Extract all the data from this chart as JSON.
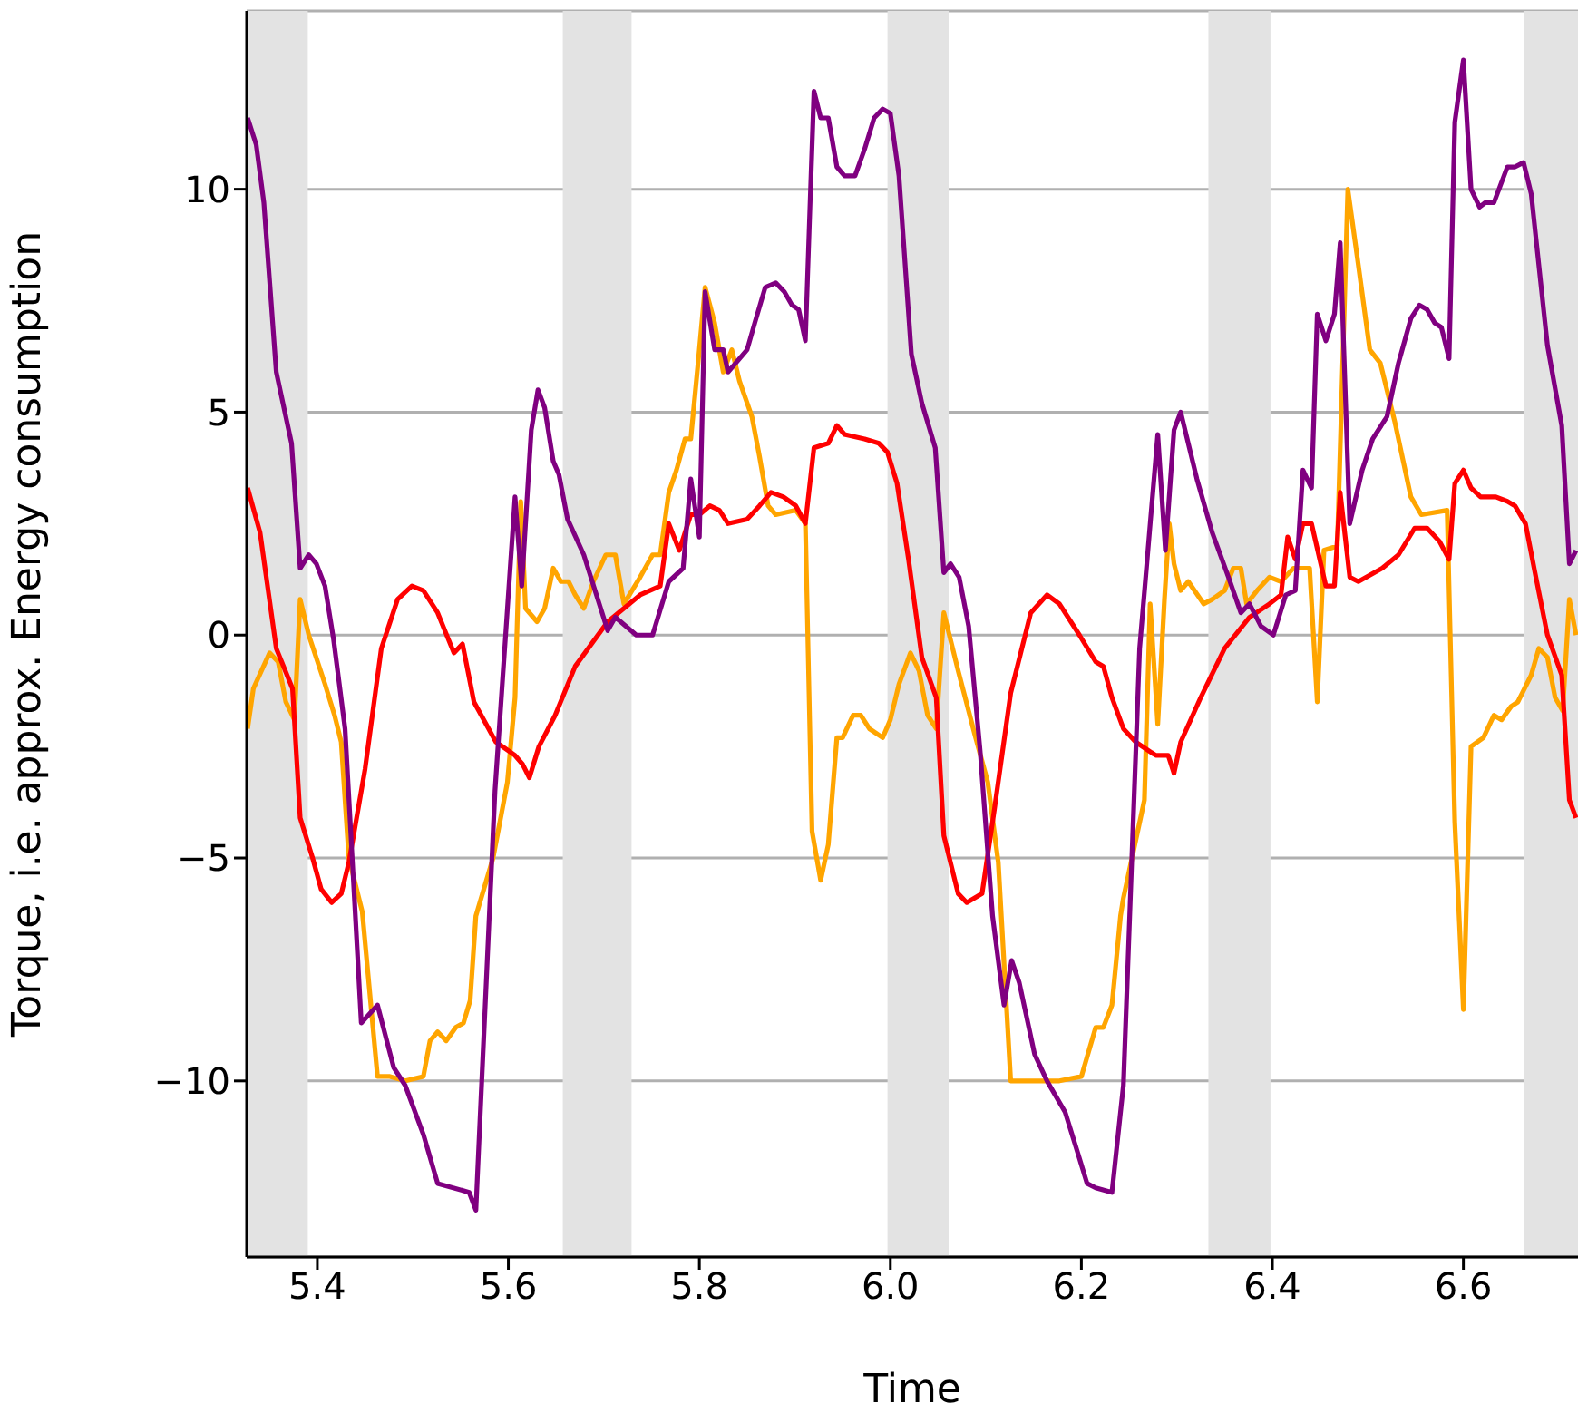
{
  "chart_data": {
    "type": "line",
    "xlabel": "Time",
    "ylabel": "Torque, i.e. approx. Energy consumption",
    "xlim": [
      5.326,
      6.72
    ],
    "ylim": [
      -13.95,
      14.0
    ],
    "xticks": [
      {
        "value": 5.4,
        "label": "5.4"
      },
      {
        "value": 5.6,
        "label": "5.6"
      },
      {
        "value": 5.8,
        "label": "5.8"
      },
      {
        "value": 6.0,
        "label": "6.0"
      },
      {
        "value": 6.2,
        "label": "6.2"
      },
      {
        "value": 6.4,
        "label": "6.4"
      },
      {
        "value": 6.6,
        "label": "6.6"
      }
    ],
    "yticks": [
      {
        "value": -10,
        "label": "−10"
      },
      {
        "value": -5,
        "label": "−5"
      },
      {
        "value": 0,
        "label": "0"
      },
      {
        "value": 5,
        "label": "5"
      },
      {
        "value": 10,
        "label": "10"
      }
    ],
    "grid": "y",
    "marker": "none",
    "line_style": "solid",
    "bands": [
      {
        "axis": "x",
        "from": 5.326,
        "to": 5.39,
        "color": "#e3e3e3"
      },
      {
        "axis": "x",
        "from": 5.657,
        "to": 5.729,
        "color": "#e3e3e3"
      },
      {
        "axis": "x",
        "from": 5.997,
        "to": 6.061,
        "color": "#e3e3e3"
      },
      {
        "axis": "x",
        "from": 6.333,
        "to": 6.398,
        "color": "#e3e3e3"
      },
      {
        "axis": "x",
        "from": 6.663,
        "to": 6.72,
        "color": "#e3e3e3"
      }
    ],
    "series": [
      {
        "color": "#ffa500",
        "x": [
          5.327,
          5.333,
          5.35,
          5.359,
          5.367,
          5.376,
          5.382,
          5.391,
          5.408,
          5.418,
          5.425,
          5.433,
          5.447,
          5.463,
          5.476,
          5.492,
          5.511,
          5.518,
          5.526,
          5.535,
          5.545,
          5.553,
          5.56,
          5.566,
          5.584,
          5.599,
          5.607,
          5.613,
          5.618,
          5.63,
          5.638,
          5.647,
          5.655,
          5.663,
          5.67,
          5.679,
          5.689,
          5.702,
          5.712,
          5.721,
          5.738,
          5.751,
          5.759,
          5.768,
          5.776,
          5.785,
          5.791,
          5.8,
          5.806,
          5.816,
          5.825,
          5.834,
          5.842,
          5.855,
          5.863,
          5.872,
          5.88,
          5.901,
          5.911,
          5.918,
          5.927,
          5.935,
          5.944,
          5.95,
          5.961,
          5.969,
          5.978,
          5.992,
          6.0,
          6.009,
          6.021,
          6.03,
          6.039,
          6.048,
          6.056,
          6.071,
          6.088,
          6.102,
          6.113,
          6.126,
          6.151,
          6.177,
          6.2,
          6.215,
          6.223,
          6.232,
          6.241,
          6.244,
          6.255,
          6.266,
          6.272,
          6.28,
          6.287,
          6.292,
          6.297,
          6.304,
          6.312,
          6.328,
          6.337,
          6.35,
          6.359,
          6.367,
          6.373,
          6.384,
          6.397,
          6.409,
          6.422,
          6.43,
          6.439,
          6.447,
          6.454,
          6.468,
          6.479,
          6.49,
          6.502,
          6.513,
          6.528,
          6.545,
          6.556,
          6.583,
          6.591,
          6.6,
          6.608,
          6.621,
          6.632,
          6.64,
          6.65,
          6.657,
          6.671,
          6.679,
          6.688,
          6.696,
          6.704,
          6.711,
          6.718
        ],
        "values": [
          -2.1,
          -1.2,
          -0.4,
          -0.6,
          -1.5,
          -1.9,
          0.8,
          0.0,
          -1.1,
          -1.8,
          -2.4,
          -5.0,
          -6.2,
          -9.9,
          -9.9,
          -10.0,
          -9.9,
          -9.1,
          -8.9,
          -9.1,
          -8.8,
          -8.7,
          -8.2,
          -6.3,
          -5.0,
          -3.3,
          -1.4,
          3.0,
          0.6,
          0.3,
          0.6,
          1.5,
          1.2,
          1.2,
          0.9,
          0.6,
          1.2,
          1.8,
          1.8,
          0.7,
          1.3,
          1.8,
          1.8,
          3.2,
          3.7,
          4.4,
          4.4,
          6.4,
          7.8,
          7.0,
          5.9,
          6.4,
          5.7,
          4.9,
          4.0,
          2.9,
          2.7,
          2.8,
          2.5,
          -4.4,
          -5.5,
          -4.7,
          -2.3,
          -2.3,
          -1.8,
          -1.8,
          -2.1,
          -2.3,
          -1.9,
          -1.1,
          -0.4,
          -0.8,
          -1.8,
          -2.1,
          0.5,
          -0.8,
          -2.2,
          -3.3,
          -5.1,
          -10.0,
          -10.0,
          -10.0,
          -9.9,
          -8.8,
          -8.8,
          -8.3,
          -6.3,
          -5.9,
          -4.8,
          -3.7,
          0.7,
          -2.0,
          0.8,
          2.5,
          1.6,
          1.0,
          1.2,
          0.7,
          0.8,
          1.0,
          1.5,
          1.5,
          0.7,
          1.0,
          1.3,
          1.2,
          1.5,
          1.5,
          1.5,
          -1.5,
          1.9,
          2.0,
          10.0,
          8.3,
          6.4,
          6.1,
          4.8,
          3.1,
          2.7,
          2.8,
          -4.2,
          -8.4,
          -2.5,
          -2.3,
          -1.8,
          -1.9,
          -1.6,
          -1.5,
          -0.9,
          -0.3,
          -0.5,
          -1.4,
          -1.7,
          0.8,
          0.0
        ]
      },
      {
        "color": "#ff0000",
        "x": [
          5.327,
          5.34,
          5.357,
          5.374,
          5.382,
          5.395,
          5.404,
          5.415,
          5.425,
          5.433,
          5.45,
          5.467,
          5.484,
          5.499,
          5.511,
          5.526,
          5.543,
          5.552,
          5.564,
          5.587,
          5.607,
          5.615,
          5.622,
          5.632,
          5.649,
          5.67,
          5.704,
          5.738,
          5.759,
          5.768,
          5.779,
          5.791,
          5.8,
          5.811,
          5.821,
          5.83,
          5.85,
          5.863,
          5.875,
          5.888,
          5.901,
          5.911,
          5.92,
          5.935,
          5.944,
          5.952,
          5.973,
          5.988,
          5.997,
          6.007,
          6.019,
          6.033,
          6.048,
          6.056,
          6.071,
          6.08,
          6.096,
          6.109,
          6.126,
          6.147,
          6.164,
          6.177,
          6.198,
          6.215,
          6.223,
          6.232,
          6.244,
          6.257,
          6.278,
          6.291,
          6.297,
          6.304,
          6.325,
          6.35,
          6.376,
          6.397,
          6.409,
          6.416,
          6.424,
          6.432,
          6.441,
          6.456,
          6.465,
          6.471,
          6.481,
          6.49,
          6.515,
          6.532,
          6.549,
          6.562,
          6.575,
          6.585,
          6.591,
          6.6,
          6.608,
          6.618,
          6.634,
          6.646,
          6.654,
          6.665,
          6.675,
          6.688,
          6.703,
          6.711,
          6.718
        ],
        "values": [
          3.3,
          2.3,
          -0.3,
          -1.2,
          -4.1,
          -5.0,
          -5.7,
          -6.0,
          -5.8,
          -5.1,
          -3.0,
          -0.3,
          0.8,
          1.1,
          1.0,
          0.5,
          -0.4,
          -0.2,
          -1.5,
          -2.4,
          -2.7,
          -2.9,
          -3.2,
          -2.5,
          -1.8,
          -0.7,
          0.3,
          0.9,
          1.1,
          2.5,
          1.9,
          2.7,
          2.7,
          2.9,
          2.8,
          2.5,
          2.6,
          2.9,
          3.2,
          3.1,
          2.9,
          2.5,
          4.2,
          4.3,
          4.7,
          4.5,
          4.4,
          4.3,
          4.1,
          3.4,
          1.7,
          -0.5,
          -1.4,
          -4.5,
          -5.8,
          -6.0,
          -5.8,
          -3.9,
          -1.3,
          0.5,
          0.9,
          0.7,
          0.0,
          -0.6,
          -0.7,
          -1.4,
          -2.1,
          -2.4,
          -2.7,
          -2.7,
          -3.1,
          -2.4,
          -1.4,
          -0.3,
          0.4,
          0.7,
          0.9,
          2.2,
          1.7,
          2.5,
          2.5,
          1.1,
          1.1,
          3.2,
          1.3,
          1.2,
          1.5,
          1.8,
          2.4,
          2.4,
          2.1,
          1.7,
          3.4,
          3.7,
          3.3,
          3.1,
          3.1,
          3.0,
          2.9,
          2.5,
          1.4,
          0.0,
          -0.9,
          -3.7,
          -4.1
        ]
      },
      {
        "color": "#800080",
        "x": [
          5.327,
          5.336,
          5.344,
          5.357,
          5.373,
          5.382,
          5.391,
          5.399,
          5.408,
          5.417,
          5.429,
          5.446,
          5.463,
          5.48,
          5.492,
          5.511,
          5.526,
          5.559,
          5.566,
          5.586,
          5.607,
          5.614,
          5.624,
          5.631,
          5.638,
          5.647,
          5.653,
          5.662,
          5.679,
          5.704,
          5.712,
          5.734,
          5.751,
          5.768,
          5.783,
          5.791,
          5.8,
          5.806,
          5.816,
          5.825,
          5.83,
          5.85,
          5.858,
          5.869,
          5.88,
          5.889,
          5.897,
          5.904,
          5.911,
          5.92,
          5.927,
          5.935,
          5.944,
          5.952,
          5.963,
          5.973,
          5.983,
          5.992,
          6.0,
          6.009,
          6.022,
          6.033,
          6.047,
          6.056,
          6.063,
          6.072,
          6.082,
          6.094,
          6.107,
          6.119,
          6.127,
          6.135,
          6.151,
          6.164,
          6.183,
          6.196,
          6.206,
          6.215,
          6.232,
          6.244,
          6.261,
          6.28,
          6.288,
          6.297,
          6.304,
          6.321,
          6.337,
          6.354,
          6.367,
          6.376,
          6.388,
          6.401,
          6.414,
          6.424,
          6.432,
          6.441,
          6.447,
          6.456,
          6.465,
          6.471,
          6.481,
          6.494,
          6.505,
          6.52,
          6.532,
          6.545,
          6.554,
          6.562,
          6.57,
          6.577,
          6.585,
          6.591,
          6.6,
          6.608,
          6.617,
          6.623,
          6.632,
          6.646,
          6.654,
          6.663,
          6.671,
          6.688,
          6.703,
          6.711,
          6.718
        ],
        "values": [
          11.6,
          11.0,
          9.7,
          5.9,
          4.3,
          1.5,
          1.8,
          1.6,
          1.1,
          -0.1,
          -2.1,
          -8.7,
          -8.3,
          -9.7,
          -10.1,
          -11.2,
          -12.3,
          -12.5,
          -12.9,
          -3.5,
          3.1,
          1.1,
          4.6,
          5.5,
          5.1,
          3.9,
          3.6,
          2.6,
          1.8,
          0.1,
          0.4,
          0.0,
          0.0,
          1.2,
          1.5,
          3.5,
          2.2,
          7.7,
          6.4,
          6.4,
          5.9,
          6.4,
          7.0,
          7.8,
          7.9,
          7.7,
          7.4,
          7.3,
          6.6,
          12.2,
          11.6,
          11.6,
          10.5,
          10.3,
          10.3,
          10.9,
          11.6,
          11.8,
          11.7,
          10.3,
          6.3,
          5.2,
          4.2,
          1.4,
          1.6,
          1.3,
          0.2,
          -2.6,
          -6.3,
          -8.3,
          -7.3,
          -7.8,
          -9.4,
          -10.0,
          -10.7,
          -11.6,
          -12.3,
          -12.4,
          -12.5,
          -10.1,
          -0.3,
          4.5,
          1.9,
          4.6,
          5.0,
          3.5,
          2.3,
          1.3,
          0.5,
          0.7,
          0.2,
          0.0,
          0.9,
          1.0,
          3.7,
          3.3,
          7.2,
          6.6,
          7.2,
          8.8,
          2.5,
          3.7,
          4.4,
          4.9,
          6.1,
          7.1,
          7.4,
          7.3,
          7.0,
          6.9,
          6.2,
          11.5,
          12.9,
          10.0,
          9.6,
          9.7,
          9.7,
          10.5,
          10.5,
          10.6,
          9.9,
          6.5,
          4.7,
          1.6,
          1.9
        ]
      }
    ]
  }
}
